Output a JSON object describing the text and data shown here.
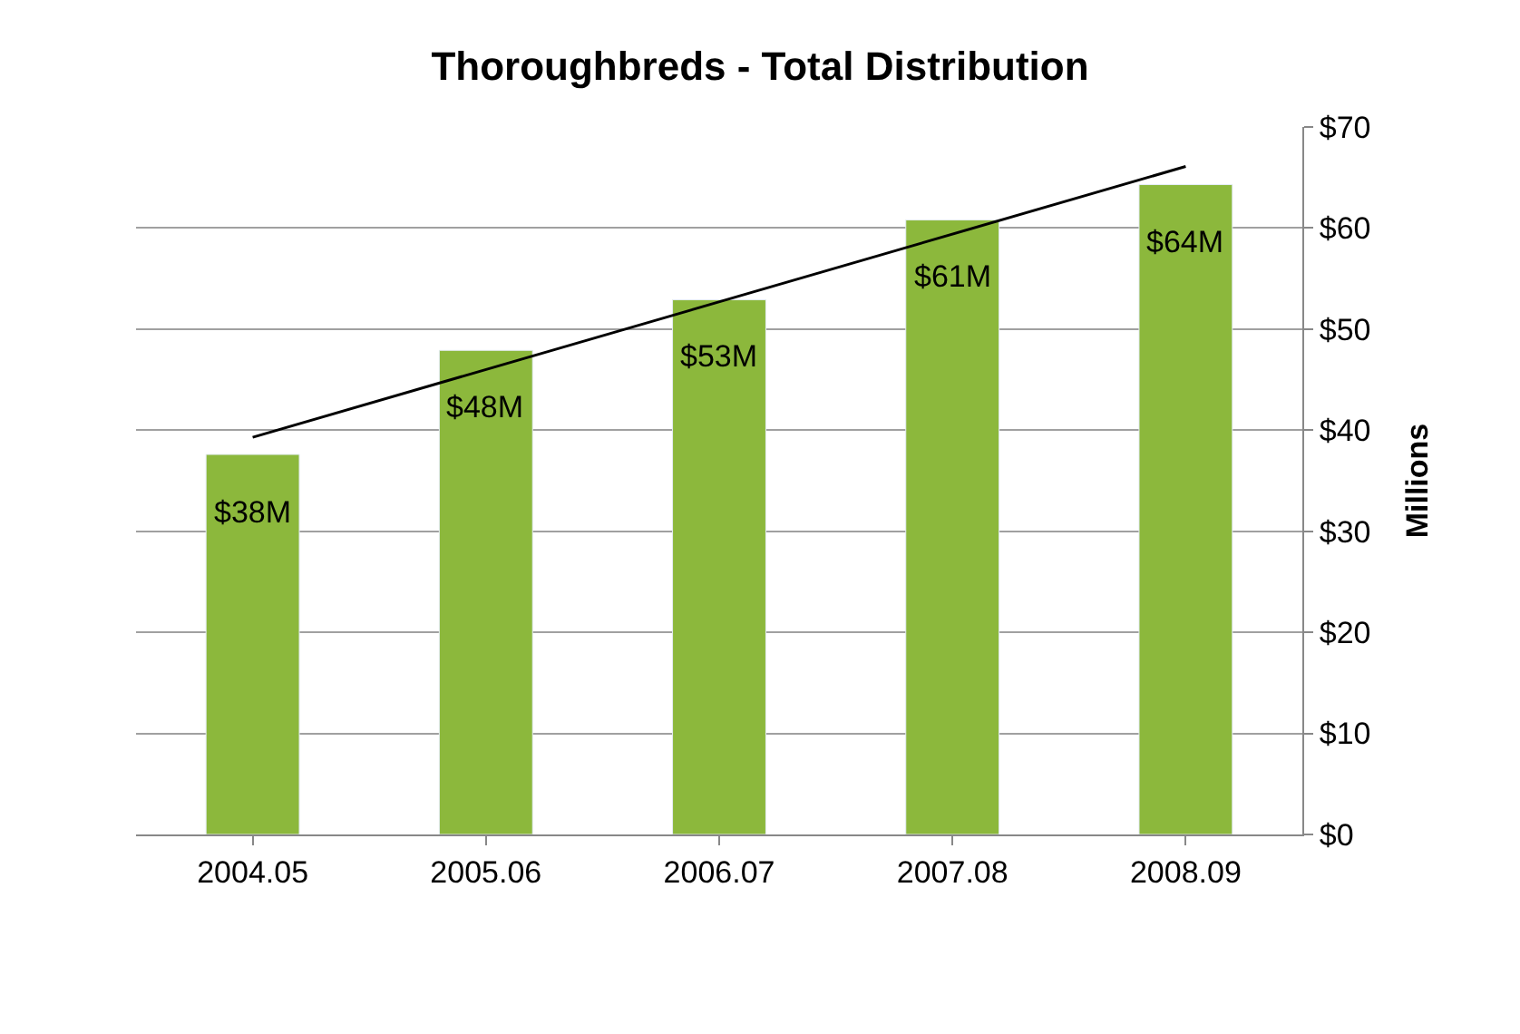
{
  "chart_data": {
    "type": "bar",
    "title": "Thoroughbreds - Total Distribution",
    "ylabel": "Millions",
    "categories": [
      "2004.05",
      "2005.06",
      "2006.07",
      "2007.08",
      "2008.09"
    ],
    "series": [
      {
        "type": "bar",
        "color": "#8cb83c",
        "values": [
          37.6,
          47.9,
          52.9,
          60.8,
          64.3
        ],
        "value_labels": [
          "$38M",
          "$48M",
          "$53M",
          "$61M",
          "$64M"
        ]
      },
      {
        "type": "line",
        "color": "#000000",
        "x": [
          "2004.05",
          "2008.09"
        ],
        "values": [
          39.3,
          66.1
        ],
        "marker": "none"
      }
    ],
    "ylim": [
      0,
      70
    ],
    "yticks": [
      {
        "value": 0,
        "label": "$0"
      },
      {
        "value": 10,
        "label": "$10"
      },
      {
        "value": 20,
        "label": "$20"
      },
      {
        "value": 30,
        "label": "$30"
      },
      {
        "value": 40,
        "label": "$40"
      },
      {
        "value": 50,
        "label": "$50"
      },
      {
        "value": 60,
        "label": "$60"
      },
      {
        "value": 70,
        "label": "$70"
      }
    ],
    "grid": "y"
  }
}
